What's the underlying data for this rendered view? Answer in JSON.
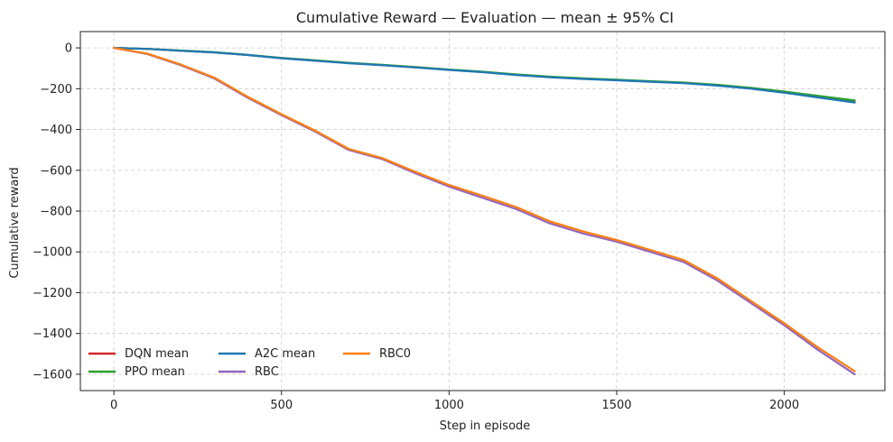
{
  "chart_data": {
    "type": "line",
    "title": "Cumulative Reward — Evaluation — mean ± 95% CI",
    "xlabel": "Step in episode",
    "ylabel": "Cumulative reward",
    "xlim": [
      -100,
      2300
    ],
    "ylim": [
      -1680,
      80
    ],
    "xticks": [
      0,
      500,
      1000,
      1500,
      2000
    ],
    "yticks": [
      0,
      -200,
      -400,
      -600,
      -800,
      -1000,
      -1200,
      -1400,
      -1600
    ],
    "grid": true,
    "legend_position": "lower-left",
    "legend_columns": 3,
    "series": [
      {
        "name": "DQN mean",
        "color": "#d62728",
        "x": [
          0,
          100,
          200,
          300,
          400,
          500,
          600,
          700,
          800,
          900,
          1000,
          1100,
          1200,
          1300,
          1400,
          1500,
          1600,
          1700,
          1800,
          1900,
          2000,
          2100,
          2210
        ],
        "y": [
          0,
          -5,
          -14,
          -22,
          -35,
          -50,
          -62,
          -74,
          -84,
          -95,
          -107,
          -118,
          -132,
          -143,
          -151,
          -158,
          -165,
          -172,
          -183,
          -198,
          -218,
          -240,
          -265
        ]
      },
      {
        "name": "PPO mean",
        "color": "#2ca02c",
        "x": [
          0,
          100,
          200,
          300,
          400,
          500,
          600,
          700,
          800,
          900,
          1000,
          1100,
          1200,
          1300,
          1400,
          1500,
          1600,
          1700,
          1800,
          1900,
          2000,
          2100,
          2210
        ],
        "y": [
          0,
          -5,
          -13,
          -21,
          -34,
          -49,
          -61,
          -73,
          -83,
          -94,
          -106,
          -117,
          -130,
          -141,
          -149,
          -156,
          -163,
          -170,
          -181,
          -196,
          -214,
          -235,
          -258
        ]
      },
      {
        "name": "A2C mean",
        "color": "#1f77b4",
        "x": [
          0,
          100,
          200,
          300,
          400,
          500,
          600,
          700,
          800,
          900,
          1000,
          1100,
          1200,
          1300,
          1400,
          1500,
          1600,
          1700,
          1800,
          1900,
          2000,
          2100,
          2210
        ],
        "y": [
          0,
          -5,
          -14,
          -22,
          -35,
          -51,
          -63,
          -75,
          -85,
          -96,
          -108,
          -119,
          -133,
          -144,
          -152,
          -159,
          -166,
          -173,
          -185,
          -200,
          -220,
          -243,
          -268
        ]
      },
      {
        "name": "RBC",
        "color": "#9467bd",
        "x": [
          0,
          100,
          200,
          300,
          400,
          500,
          600,
          700,
          800,
          900,
          1000,
          1100,
          1200,
          1300,
          1400,
          1500,
          1600,
          1700,
          1800,
          1900,
          2000,
          2100,
          2210
        ],
        "y": [
          0,
          -30,
          -85,
          -150,
          -245,
          -330,
          -410,
          -500,
          -545,
          -615,
          -680,
          -735,
          -790,
          -860,
          -910,
          -950,
          -1000,
          -1050,
          -1140,
          -1250,
          -1360,
          -1480,
          -1600
        ]
      },
      {
        "name": "RBC0",
        "color": "#ff7f0e",
        "x": [
          0,
          100,
          200,
          300,
          400,
          500,
          600,
          700,
          800,
          900,
          1000,
          1100,
          1200,
          1300,
          1400,
          1500,
          1600,
          1700,
          1800,
          1900,
          2000,
          2100,
          2210
        ],
        "y": [
          0,
          -28,
          -82,
          -146,
          -240,
          -325,
          -405,
          -495,
          -540,
          -608,
          -672,
          -725,
          -780,
          -850,
          -900,
          -942,
          -990,
          -1040,
          -1130,
          -1240,
          -1350,
          -1468,
          -1585
        ]
      }
    ]
  }
}
